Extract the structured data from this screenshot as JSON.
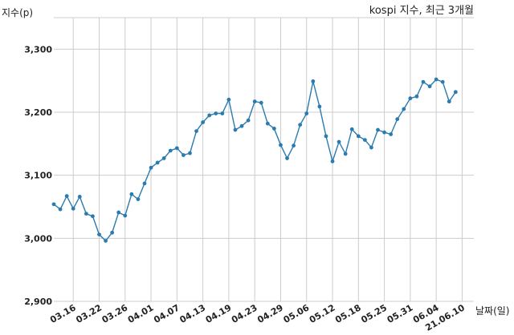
{
  "chart_data": {
    "type": "line",
    "title": "kospi 지수, 최근 3개월",
    "xlabel": "날짜(일)",
    "ylabel": "지수(p)",
    "ylim": [
      2900,
      3350
    ],
    "yticks": [
      2900,
      3000,
      3100,
      3200,
      3300
    ],
    "ytick_labels": [
      "2,900",
      "3,000",
      "3,100",
      "3,200",
      "3,300"
    ],
    "xtick_labels": [
      "03.16",
      "03.22",
      "03.26",
      "04.01",
      "04.07",
      "04.13",
      "04.19",
      "04.23",
      "04.29",
      "05.06",
      "05.12",
      "05.18",
      "05.25",
      "05.31",
      "06.04",
      "21.06.10"
    ],
    "xtick_index": [
      3,
      7,
      11,
      15,
      19,
      23,
      27,
      31,
      35,
      39,
      43,
      47,
      51,
      55,
      59,
      63
    ],
    "grid": true,
    "color": "#2a7bb0",
    "series": [
      {
        "values": [
          3054,
          3046,
          3067,
          3047,
          3066,
          3039,
          3035,
          3006,
          2996,
          3009,
          3041,
          3036,
          3070,
          3062,
          3087,
          3112,
          3120,
          3127,
          3139,
          3143,
          3132,
          3135,
          3170,
          3184,
          3195,
          3198,
          3198,
          3220,
          3172,
          3178,
          3187,
          3217,
          3215,
          3182,
          3174,
          3148,
          3127,
          3147,
          3180,
          3198,
          3249,
          3209,
          3162,
          3122,
          3153,
          3134,
          3173,
          3162,
          3156,
          3144,
          3172,
          3168,
          3165,
          3189,
          3205,
          3222,
          3225,
          3248,
          3241,
          3252,
          3248,
          3217,
          3232
        ]
      }
    ]
  }
}
